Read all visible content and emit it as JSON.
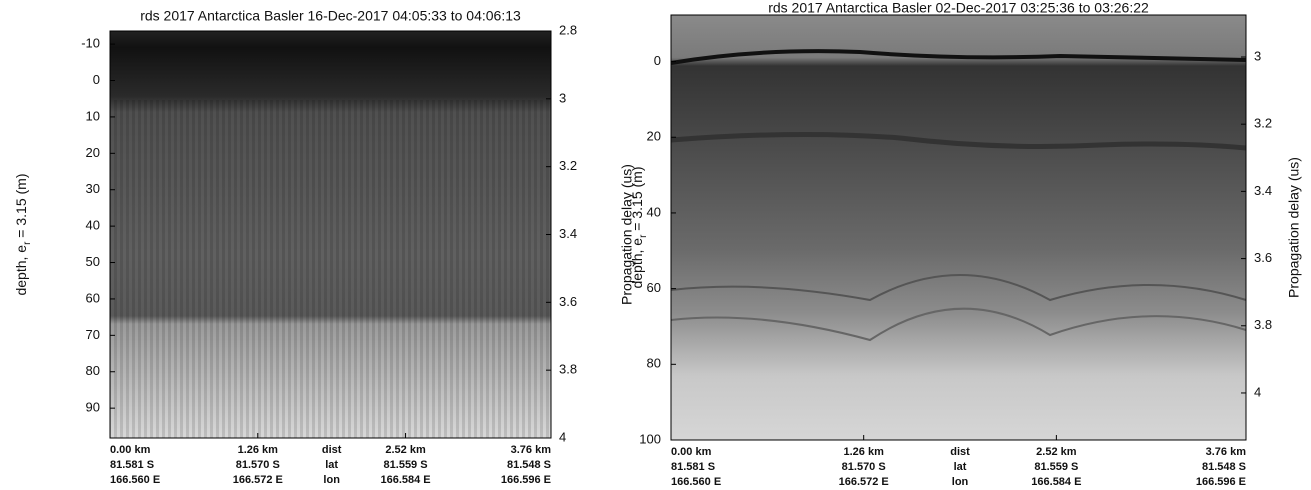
{
  "chart_data": [
    {
      "type": "echogram",
      "title": "rds 2017 Antarctica Basler 16-Dec-2017 04:05:33 to 04:06:13",
      "ylabel": [
        "depth, e",
        "r",
        " = 3.15 (m)"
      ],
      "y2label": "Propagation delay (us)",
      "ylim": [
        -13.6,
        98.2
      ],
      "yticks": [
        -10,
        0,
        10,
        20,
        30,
        40,
        50,
        60,
        70,
        80,
        90
      ],
      "y2lim": [
        2.8,
        4
      ],
      "y2ticks": [
        2.8,
        3,
        3.2,
        3.4,
        3.6,
        3.8,
        4
      ],
      "xlim": [
        0,
        3.76
      ],
      "xticks": [
        {
          "value": 0,
          "label": "0.00 km"
        },
        {
          "value": 1.26,
          "label": "1.26 km"
        },
        {
          "value": 2.52,
          "label": "2.52 km"
        },
        {
          "value": 3.76,
          "label": "3.76 km"
        }
      ],
      "x_rows": [
        "dist",
        "lat",
        "lon"
      ],
      "lat_labels": [
        "81.581 S",
        "81.570 S",
        "81.559 S",
        "81.548 S"
      ],
      "lon_labels": [
        "166.560 E",
        "166.572 E",
        "166.584 E",
        "166.596 E"
      ]
    },
    {
      "type": "echogram",
      "title": "rds 2017 Antarctica Basler 02-Dec-2017 03:25:36 to 03:26:22",
      "ylabel": [
        "depth, e",
        "r",
        " = 3.15 (m)"
      ],
      "y2label": "Propagation delay (us)",
      "ylim": [
        -12.3,
        100
      ],
      "yticks": [
        0,
        20,
        40,
        60,
        80,
        100
      ],
      "y2lim": [
        2.875,
        4.14
      ],
      "y2ticks": [
        3,
        3.2,
        3.4,
        3.6,
        3.8,
        4
      ],
      "xlim": [
        0,
        3.76
      ],
      "xticks": [
        {
          "value": 0,
          "label": "0.00 km"
        },
        {
          "value": 1.26,
          "label": "1.26 km"
        },
        {
          "value": 2.52,
          "label": "2.52 km"
        },
        {
          "value": 3.76,
          "label": "3.76 km"
        }
      ],
      "x_rows": [
        "dist",
        "lat",
        "lon"
      ],
      "lat_labels": [
        "81.581 S",
        "81.570 S",
        "81.559 S",
        "81.548 S"
      ],
      "lon_labels": [
        "166.560 E",
        "166.572 E",
        "166.584 E",
        "166.596 E"
      ]
    }
  ]
}
